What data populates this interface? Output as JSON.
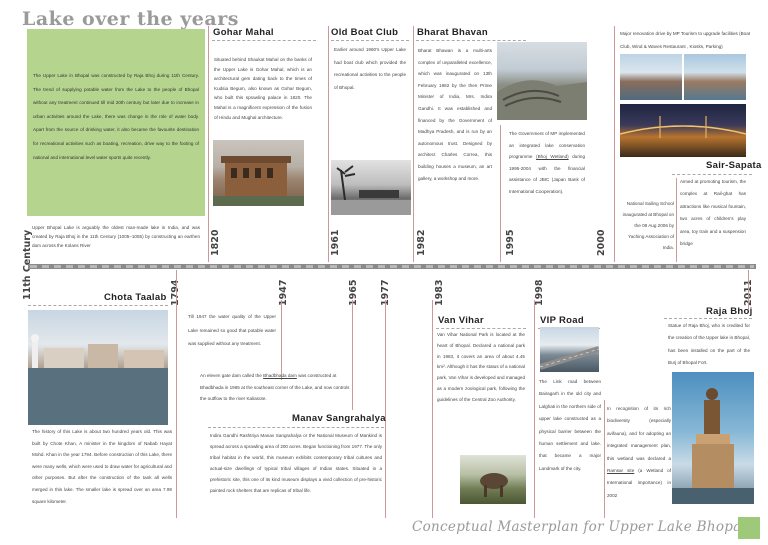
{
  "page": {
    "title": "Lake over the years",
    "footer": "Conceptual Masterplan for Upper Lake Bhopal"
  },
  "timeline": {
    "years_top": [
      "11th Century",
      "1820",
      "1961",
      "1982",
      "1995",
      "2000"
    ],
    "years_bottom": [
      "1794",
      "1947",
      "1965",
      "1977",
      "1983",
      "1998",
      "2011"
    ]
  },
  "sections": {
    "intro": {
      "text": "The Upper Lake in Bhopal was constructed by Raja Bhoj during 11th Century. The trend of supplying potable water from the Lake to the people of Bhopal without any treatment continued till mid 20th century but later due to increase in urban activities around the Lake, there was change in the role of water body. Apart from the source of drinking water, it also became the favourite destination for recreational activities such as boating, recreation, drive way to the footing of national and international level water sports quite recently."
    },
    "eleventh_century": {
      "text": "Upper Bhopal Lake is arguably the oldest man-made lake in India, and was created by Raja Bhoj in the 11th Century (1005–1055) by constructing an earthen dam across the Kolans River"
    },
    "gohar_mahal": {
      "heading": "Gohar Mahal",
      "text": "Situated behind Shaukat Mahal on the banks of the Upper Lake is Gohar Mahal, which is an architectural gem dating back to the times of Kudsia Begum, also known as Gohar Begum, who built this sprawling palace in 1820. The Mahal is a magnificent expression of the fusion of Hindu and Mughal architecture."
    },
    "old_boat_club": {
      "heading": "Old Boat Club",
      "text": "Earlier around 1960's Upper Lake had boat club which provided the recreational activities to the people of Bhopal."
    },
    "bharat_bhavan": {
      "heading": "Bharat Bhavan",
      "text": "Bharat Bhawan is a multi-arts complex of unparalleled excellence, which was inaugurated on 13th February 1982 by the then Prime Minister of India, Mrs. Indira Gandhi. It was established and financed by the Government of Madhya Pradesh, and is run by an autonomous trust. Designed by architect Charles Correa, this building houses a museum, an art gallery, a workshop and more."
    },
    "conservation": {
      "text_before": "The Government of MP implemented an integrated lake conservation programme ",
      "underlined": "(Bhoj Wetland)",
      "text_after": " during 1995-2004 with the financial assistance of JBIC (Japan Bank of International Cooperation)."
    },
    "renovation": {
      "text": "Major renovation drive by MP Tourism to upgrade facilities (Boat Club, Wind & Waves Restaurant , Kiosks, Parking)"
    },
    "sailing": {
      "text": "National Sailing School inaugurated at Bhopal on the 08 Aug 2006 by Yaching Association of India."
    },
    "sair_sapata": {
      "heading": "Sair-Sapata",
      "text": "Aimed at promoting tourism, the complex at Rail-ghat has attractions like musical fountain, two acres of children's play area, toy train and a suspension bridge"
    },
    "chota_taalab": {
      "heading": "Chota Taalab",
      "text": "The history of this Lake is about two hundred years old. This was built by Chote Khan, A minister in the kingdom of Nabab Hayat Mohd. Khan in the year 1794. Before construction of this Lake, there were many wells, which were used to draw water for agricultural and other purposes. But after the construction of the tank all wells merged in this lake. The smaller lake is spread over an area 7.99 square kilometer."
    },
    "water_quality": {
      "text": "Till 1947 the water quality of the Upper Lake remained so good that potable water was supplied without any treatment."
    },
    "bhadbhada": {
      "text_before": "An eleven gate dam called the ",
      "underlined": "Bhadbhada dam",
      "text_after": " was constructed at Bhadbhada in 1965 at the southeast corner of the Lake, and now controls the outflow to the river Kaliasote."
    },
    "manav": {
      "heading": "Manav Sangrahalya",
      "text": "Indira Gandhi Rashtriya Manav Sangrahalya or the National Museum of Mankind is spread across a sprawling area of 200 acres. Began functioning from 1977. The only tribal habitat in the world, this museum exhibits contemporary tribal cultures and actual-size dwellings of typical tribal villages of Indian states. Situated in a prehistoric site, this one of its kind museum displays a vivid collection of pre-historic painted rock shelters that are replicas of tribal life."
    },
    "van_vihar": {
      "heading": "Van Vihar",
      "text": "Van Vihar National Park is located at the heart of Bhopal. Declared a national park in 1983, it covers an area of about 4.45 km². Although it has the status of a national park, Van Vihar is developed and managed as a modern zoological park, following the guidelines of the Central Zoo Authority."
    },
    "vip_road": {
      "heading": "VIP Road",
      "text": "The Link road between Bairagarh in the old city and Lalghati in the northern side of upper lake constructed as a physical barrier between the human settlement and lake. that became a major Landmark of the city."
    },
    "ramsar": {
      "text_before": "In recognition of its rich biodiversity (especially avifauna), and for adopting an integrated management plan, this wetland was declared a ",
      "underlined": "Ramsar site",
      "text_after": " (a Wetland of International importance) in 2002"
    },
    "raja_bhoj": {
      "heading": "Raja Bhoj",
      "text": "Statue of Raja Bhoj, who is credited for the creation of the Upper lake in Bhopal, has been installed on the part of the Burj of Bhopal Fort."
    }
  },
  "colors": {
    "intro_box": "#b5d58f",
    "timeline_bar": "#8a8a8a",
    "heading_text": "#222222",
    "body_text": "#444444",
    "title_grey": "#9a9a9a",
    "rule_red": "#cc9999",
    "footer_square": "#9ec97a"
  }
}
